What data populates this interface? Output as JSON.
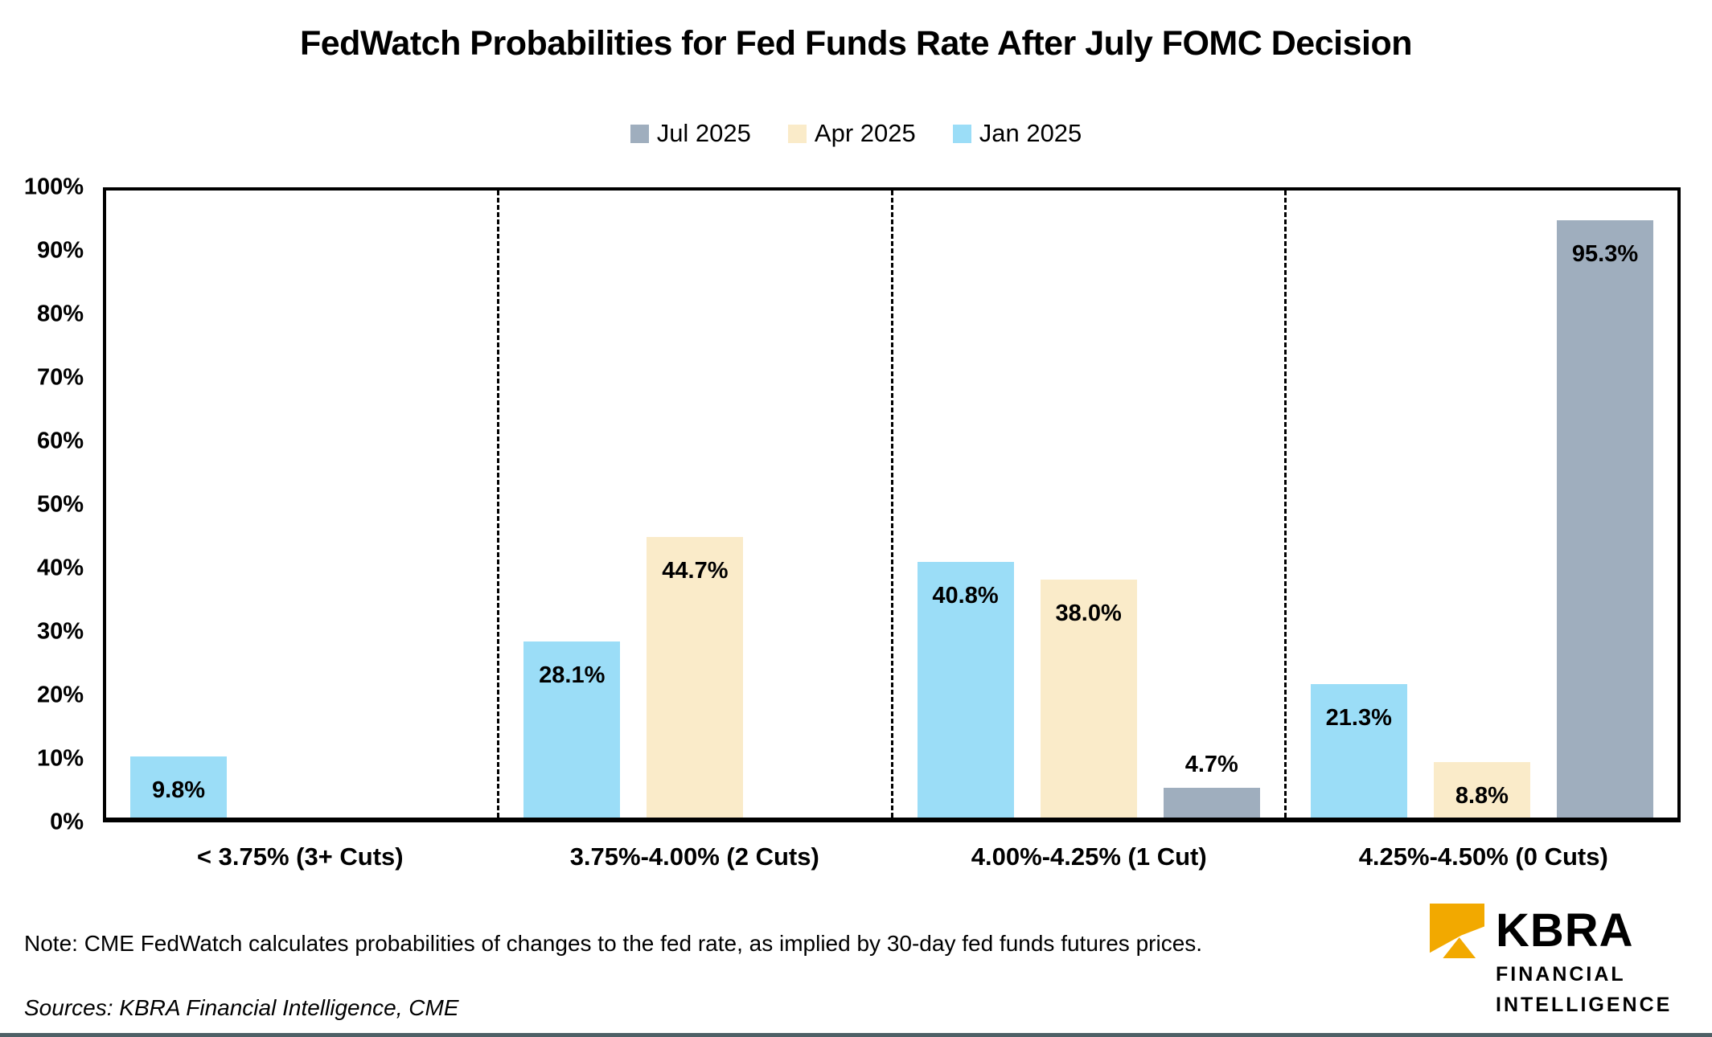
{
  "page": {
    "bottom_rule_color": "#4E6066"
  },
  "chart_data": {
    "type": "bar",
    "title": "FedWatch Probabilities for Fed Funds Rate After July FOMC Decision",
    "categories": [
      "< 3.75% (3+ Cuts)",
      "3.75%-4.00% (2 Cuts)",
      "4.00%-4.25% (1 Cut)",
      "4.25%-4.50% (0 Cuts)"
    ],
    "series": [
      {
        "name": "Jul 2025",
        "color": "#9FAEBE",
        "values": [
          null,
          null,
          4.7,
          95.3
        ],
        "labels": [
          null,
          null,
          "4.7%",
          "95.3%"
        ]
      },
      {
        "name": "Apr 2025",
        "color": "#FAEBC9",
        "values": [
          null,
          44.7,
          38.0,
          8.8
        ],
        "labels": [
          null,
          "44.7%",
          "38.0%",
          "8.8%"
        ]
      },
      {
        "name": "Jan 2025",
        "color": "#9BDDF7",
        "values": [
          9.8,
          28.1,
          40.8,
          21.3
        ],
        "labels": [
          "9.8%",
          "28.1%",
          "40.8%",
          "21.3%"
        ]
      }
    ],
    "bar_order": [
      "Jan 2025",
      "Apr 2025",
      "Jul 2025"
    ],
    "ylim": [
      0,
      100
    ],
    "yticks": [
      {
        "value": 100,
        "label": "100%"
      },
      {
        "value": 90,
        "label": "90%"
      },
      {
        "value": 80,
        "label": "80%"
      },
      {
        "value": 70,
        "label": "70%"
      },
      {
        "value": 60,
        "label": "60%"
      },
      {
        "value": 50,
        "label": "50%"
      },
      {
        "value": 40,
        "label": "40%"
      },
      {
        "value": 30,
        "label": "30%"
      },
      {
        "value": 20,
        "label": "20%"
      },
      {
        "value": 10,
        "label": "10%"
      },
      {
        "value": 0,
        "label": "0%"
      }
    ],
    "label_outside_below": 6,
    "legend_position": "top",
    "grid": "off",
    "category_separator": "dashed"
  },
  "note": "Note: CME FedWatch calculates probabilities of changes to the fed rate, as implied by 30-day fed funds futures prices.",
  "sources": "Sources: KBRA Financial Intelligence, CME",
  "logo": {
    "brand": "KBRA",
    "line1": "FINANCIAL",
    "line2": "INTELLIGENCE",
    "accent_color": "#F2A900"
  }
}
